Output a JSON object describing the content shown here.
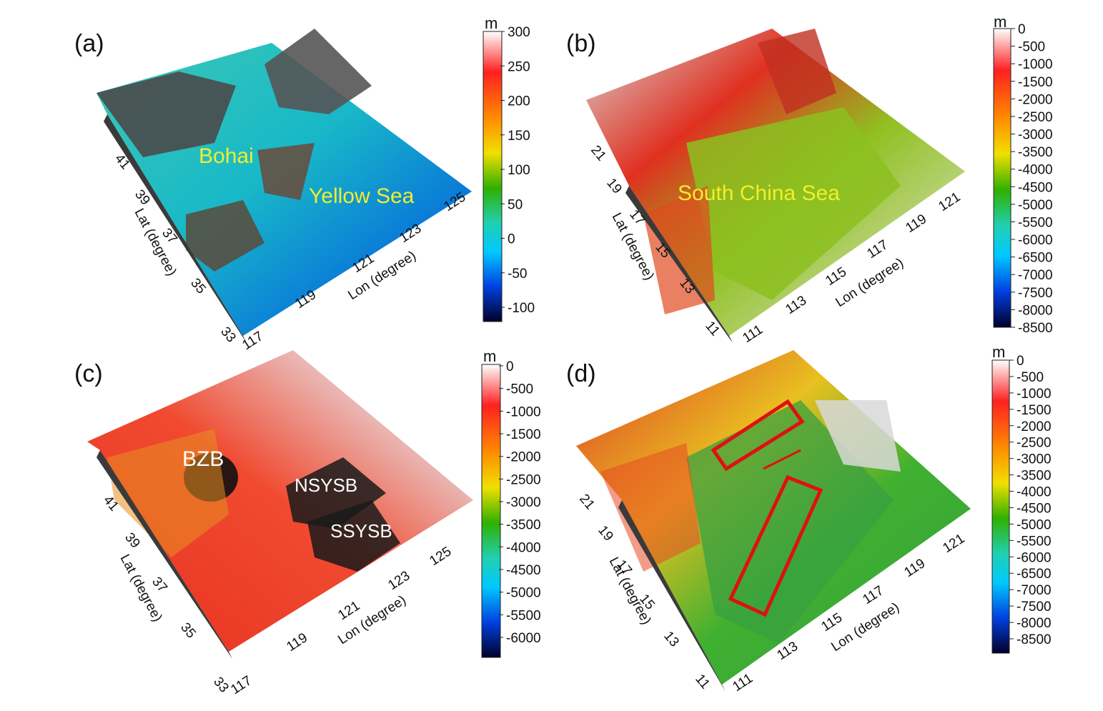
{
  "panels": [
    {
      "id": "a",
      "label": "(a)",
      "annotations": [
        "Bohai",
        "Yellow Sea"
      ],
      "lat_axis_label": "Lat (degree)",
      "lon_axis_label": "Lon (degree)",
      "lat_ticks": [
        "41",
        "39",
        "37",
        "35",
        "33"
      ],
      "lon_ticks": [
        "117",
        "119",
        "121",
        "123",
        "125"
      ],
      "colorbar": {
        "unit": "m",
        "ticks": [
          "300",
          "250",
          "200",
          "150",
          "100",
          "50",
          "0",
          "-50",
          "-100"
        ],
        "colors": [
          "#ffffff",
          "#ff2020",
          "#ff8c00",
          "#f0e000",
          "#30b000",
          "#20d0b0",
          "#00c8ff",
          "#0040e0",
          "#00002a"
        ]
      },
      "surface_colors": [
        "#3cc8b4",
        "#18b8c8",
        "#0a7ad8",
        "#0a3aa0"
      ]
    },
    {
      "id": "b",
      "label": "(b)",
      "annotations": [
        "South China Sea"
      ],
      "lat_axis_label": "Lat (degree)",
      "lon_axis_label": "Lon (degree)",
      "lat_ticks": [
        "21",
        "19",
        "17",
        "15",
        "13",
        "11"
      ],
      "lon_ticks": [
        "111",
        "113",
        "115",
        "117",
        "119",
        "121"
      ],
      "colorbar": {
        "unit": "m",
        "ticks": [
          "0",
          "-500",
          "-1000",
          "-1500",
          "-2000",
          "-2500",
          "-3000",
          "-3500",
          "-4000",
          "-4500",
          "-5000",
          "-5500",
          "-6000",
          "-6500",
          "-7000",
          "-7500",
          "-8000",
          "-8500"
        ],
        "colors": [
          "#ffffff",
          "#ff2020",
          "#ff8c00",
          "#f0e000",
          "#30b000",
          "#20d0b0",
          "#00c8ff",
          "#0040e0",
          "#00002a"
        ]
      },
      "surface_colors": [
        "#d8d8d8",
        "#e03020",
        "#90c020",
        "#70b000"
      ]
    },
    {
      "id": "c",
      "label": "(c)",
      "annotations": [
        "BZB",
        "NSYSB",
        "SSYSB"
      ],
      "lat_axis_label": "Lat (degree)",
      "lon_axis_label": "Lon (degree)",
      "lat_ticks": [
        "41",
        "39",
        "37",
        "35",
        "33"
      ],
      "lon_ticks": [
        "117",
        "119",
        "121",
        "123",
        "125"
      ],
      "colorbar": {
        "unit": "m",
        "ticks": [
          "0",
          "-500",
          "-1000",
          "-1500",
          "-2000",
          "-2500",
          "-3000",
          "-3500",
          "-4000",
          "-4500",
          "-5000",
          "-5500",
          "-6000"
        ],
        "colors": [
          "#ffffff",
          "#ff2020",
          "#ff8c00",
          "#f0e000",
          "#30b000",
          "#20d0b0",
          "#00c8ff",
          "#0040e0",
          "#00002a"
        ]
      },
      "surface_colors": [
        "#e83020",
        "#f04a30",
        "#e8c8c8",
        "#d8d8d8"
      ]
    },
    {
      "id": "d",
      "label": "(d)",
      "annotations": [],
      "lat_axis_label": "Lat (degree)",
      "lon_axis_label": "Lon (degree)",
      "lat_ticks": [
        "21",
        "19",
        "17",
        "15",
        "13",
        "11"
      ],
      "lon_ticks": [
        "111",
        "113",
        "115",
        "117",
        "119",
        "121"
      ],
      "colorbar": {
        "unit": "m",
        "ticks": [
          "0",
          "-500",
          "-1000",
          "-1500",
          "-2000",
          "-2500",
          "-3000",
          "-3500",
          "-4000",
          "-4500",
          "-5000",
          "-5500",
          "-6000",
          "-6500",
          "-7000",
          "-7500",
          "-8000",
          "-8500"
        ],
        "colors": [
          "#ffffff",
          "#ff2020",
          "#ff8c00",
          "#f0e000",
          "#30b000",
          "#20d0b0",
          "#00c8ff",
          "#0040e0",
          "#00002a"
        ]
      },
      "surface_colors": [
        "#e03828",
        "#e8c020",
        "#40b030",
        "#30a040"
      ],
      "highlight_color": "#e01010"
    }
  ]
}
